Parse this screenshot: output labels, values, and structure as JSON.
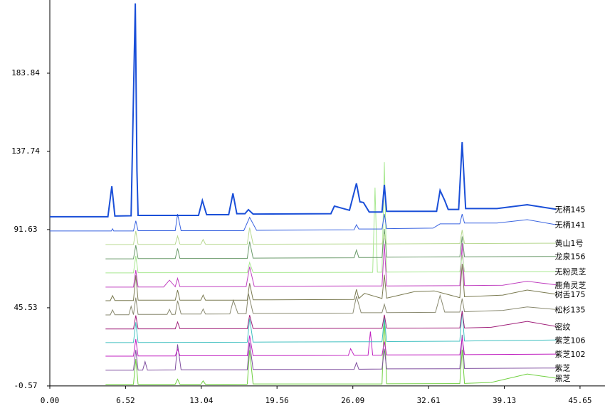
{
  "chart_data": {
    "type": "line",
    "xlim": [
      0,
      47.8
    ],
    "ylim": [
      -2.7,
      227
    ],
    "xticks": [
      {
        "value": 0,
        "label": "0.00"
      },
      6.52,
      13.04,
      19.56,
      26.09,
      32.61,
      39.13,
      45.65
    ],
    "yticks": [
      -0.57,
      45.53,
      91.63,
      137.74,
      183.84
    ],
    "series": [
      {
        "name": "无柄145",
        "color": "#1a4fd8",
        "x": [
          0,
          5.0,
          5.34,
          5.6,
          7.0,
          7.36,
          7.5,
          7.6,
          12.8,
          13.13,
          13.5,
          15.4,
          15.77,
          16.1,
          16.8,
          17.1,
          17.5,
          24.2,
          24.5,
          25.8,
          26.4,
          26.7,
          27.0,
          27.5,
          28.6,
          28.8,
          29.0,
          33.3,
          33.6,
          34.0,
          34.3,
          35.2,
          35.5,
          35.8,
          38.5,
          41.1,
          43.6
        ],
        "values": [
          99.2,
          99.2,
          117.2,
          99.6,
          99.8,
          225,
          126.4,
          100,
          100,
          108.8,
          100.4,
          100.4,
          113,
          101,
          101,
          103.4,
          100.8,
          101,
          105.5,
          103,
          118.9,
          108,
          107.6,
          102,
          102,
          118,
          102.4,
          102.4,
          114.7,
          108.8,
          103.5,
          103.5,
          143.2,
          104,
          104,
          106.3,
          103.6
        ]
      },
      {
        "name": "无柄141",
        "color": "#3a64e0",
        "x": [
          0,
          5.3,
          5.4,
          5.5,
          7.2,
          7.4,
          7.6,
          10.8,
          11.0,
          11.3,
          16.7,
          17.2,
          17.8,
          26.2,
          26.4,
          26.6,
          28.6,
          28.8,
          29.0,
          33.0,
          33.6,
          35.3,
          35.5,
          35.7,
          38.5,
          41.1,
          43.6
        ],
        "values": [
          90.8,
          90.8,
          92.1,
          90.8,
          90.8,
          96.8,
          91,
          91,
          100.8,
          91,
          91,
          98.8,
          91.2,
          91.5,
          94.5,
          92,
          92,
          100.8,
          92.2,
          92.5,
          95,
          95,
          100.8,
          95.5,
          95.5,
          97.5,
          94.5
        ]
      },
      {
        "name": "黄山1号",
        "color": "#b8d890",
        "x": [
          4.8,
          7.2,
          7.4,
          7.6,
          10.8,
          11.0,
          11.2,
          13.0,
          13.2,
          13.4,
          17.0,
          17.2,
          17.5,
          28.6,
          28.8,
          29.0,
          35.3,
          35.5,
          35.7,
          43.6
        ],
        "values": [
          82.8,
          82.8,
          90.8,
          82.9,
          82.9,
          87.8,
          83,
          83,
          85.8,
          83,
          83,
          92.8,
          83,
          83.2,
          89.2,
          83.2,
          83.4,
          91.4,
          83.4,
          83.6
        ]
      },
      {
        "name": "龙泉156",
        "color": "#6a9a6a",
        "x": [
          4.8,
          7.2,
          7.4,
          7.6,
          10.8,
          11.0,
          11.2,
          17.0,
          17.2,
          17.5,
          26.2,
          26.4,
          26.6,
          28.6,
          28.8,
          29.0,
          35.3,
          35.5,
          35.7,
          43.6
        ],
        "values": [
          74.4,
          74.4,
          82.4,
          74.5,
          74.5,
          80.5,
          74.6,
          74.6,
          84.6,
          74.8,
          75,
          79.6,
          75.2,
          75.2,
          92,
          75.4,
          75.6,
          87.6,
          75.6,
          75.8
        ]
      },
      {
        "name": "无粉灵芝",
        "color": "#a8e890",
        "x": [
          4.8,
          7.2,
          7.4,
          7.6,
          17.0,
          17.2,
          17.5,
          27.8,
          28.0,
          28.2,
          28.6,
          28.8,
          29.0,
          35.3,
          35.5,
          35.7,
          43.6
        ],
        "values": [
          66.1,
          66.1,
          76.1,
          66.2,
          66.2,
          72.2,
          66.3,
          66.4,
          116.4,
          66.5,
          66.5,
          131.4,
          66.6,
          66.7,
          76.7,
          66.7,
          66.9
        ]
      },
      {
        "name": "鹿角灵芝",
        "color": "#c040c0",
        "x": [
          4.8,
          7.2,
          7.4,
          7.6,
          9.8,
          10.3,
          10.8,
          11.0,
          11.2,
          16.9,
          17.2,
          17.6,
          28.6,
          28.8,
          29.0,
          35.3,
          35.5,
          35.7,
          39,
          41.1,
          43.6
        ],
        "values": [
          57.7,
          57.7,
          67.7,
          57.8,
          57.8,
          61.8,
          57.9,
          62.9,
          58,
          58,
          69.7,
          58.2,
          58.4,
          83.4,
          58.4,
          58.6,
          83.6,
          58.6,
          58.8,
          61.2,
          59
        ]
      },
      {
        "name": "树舌175",
        "color": "#7a7a50",
        "x": [
          4.8,
          5.2,
          5.4,
          5.6,
          7.2,
          7.4,
          7.6,
          10.8,
          11.0,
          11.2,
          13.0,
          13.2,
          13.4,
          17.0,
          17.2,
          17.5,
          26.2,
          26.4,
          26.6,
          27.1,
          28.6,
          28.8,
          29.0,
          31.4,
          33.1,
          35.3,
          35.5,
          35.7,
          39,
          41.1,
          43.6
        ],
        "values": [
          49.7,
          49.7,
          52.7,
          49.8,
          49.8,
          64.7,
          50,
          50,
          56,
          50,
          50,
          53,
          50,
          50,
          60,
          50.2,
          50.4,
          56.4,
          51,
          54,
          51,
          65,
          51.2,
          55,
          55.5,
          51.5,
          71.5,
          52,
          53,
          56,
          53.5
        ]
      },
      {
        "name": "松杉135",
        "color": "#8a8a70",
        "x": [
          4.8,
          5.2,
          5.4,
          5.6,
          6.8,
          7.0,
          7.2,
          7.4,
          7.6,
          10.1,
          10.3,
          10.5,
          10.8,
          11.0,
          11.3,
          13.0,
          13.2,
          13.4,
          15.5,
          15.8,
          16.2,
          16.9,
          17.1,
          17.5,
          26.1,
          26.4,
          26.8,
          28.6,
          28.8,
          29.0,
          33.2,
          33.6,
          34.0,
          35.3,
          35.5,
          35.7,
          39,
          41.1,
          43.6
        ],
        "values": [
          41.3,
          41.3,
          44.3,
          41.4,
          41.4,
          46.4,
          41.5,
          51.5,
          41.6,
          41.6,
          44.6,
          41.6,
          41.7,
          49.7,
          41.8,
          41.8,
          44.8,
          41.8,
          41.9,
          49.9,
          42,
          42,
          54,
          42.2,
          42.4,
          52.4,
          42.6,
          42.6,
          47.6,
          42.7,
          42.8,
          52.8,
          43,
          43,
          51,
          43.2,
          44,
          46,
          44.5
        ]
      },
      {
        "name": "密纹",
        "color": "#a0207a",
        "x": [
          4.8,
          7.2,
          7.4,
          7.6,
          10.8,
          11.0,
          11.2,
          17.0,
          17.2,
          17.5,
          28.6,
          28.8,
          29.0,
          35.3,
          35.5,
          35.7,
          38,
          41.1,
          43.6
        ],
        "values": [
          33,
          33,
          41,
          33.1,
          33.1,
          37.1,
          33.2,
          33.2,
          41.2,
          33.3,
          33.4,
          41.4,
          33.5,
          33.6,
          43.6,
          33.6,
          34,
          37.5,
          34.5
        ]
      },
      {
        "name": "紫芝106",
        "color": "#40c0c0",
        "x": [
          4.8,
          7.2,
          7.4,
          7.6,
          17.0,
          17.2,
          17.5,
          28.6,
          28.8,
          29.0,
          35.3,
          35.5,
          35.7,
          38,
          43.6
        ],
        "values": [
          25,
          25,
          37,
          25.1,
          25.2,
          39.2,
          25.3,
          25.5,
          39.5,
          25.6,
          25.8,
          43.8,
          25.9,
          26.2,
          26.5
        ]
      },
      {
        "name": "紫芝102",
        "color": "#c020c0",
        "x": [
          4.8,
          7.2,
          7.4,
          7.6,
          10.8,
          11.0,
          11.2,
          17.0,
          17.2,
          17.5,
          25.7,
          25.9,
          26.2,
          27.4,
          27.6,
          27.8,
          28.6,
          28.8,
          29.0,
          35.3,
          35.5,
          35.7,
          43.6
        ],
        "values": [
          17,
          17,
          27,
          17.1,
          17.1,
          21.1,
          17.2,
          17.2,
          29.2,
          17.3,
          17.4,
          21.4,
          17.5,
          17.5,
          31.5,
          17.6,
          17.6,
          25.6,
          17.7,
          17.8,
          27.8,
          17.9,
          18.2
        ]
      },
      {
        "name": "紫芝",
        "color": "#8050a0",
        "x": [
          4.8,
          7.2,
          7.4,
          7.6,
          8.0,
          8.2,
          8.4,
          10.8,
          11.0,
          11.3,
          17.0,
          17.2,
          17.5,
          26.2,
          26.4,
          26.6,
          28.6,
          28.8,
          29.0,
          35.3,
          35.5,
          35.7,
          43.6
        ],
        "values": [
          8.7,
          8.7,
          20.7,
          8.8,
          8.8,
          13.8,
          8.8,
          8.9,
          23.9,
          9,
          9,
          25,
          9.1,
          9.2,
          13.2,
          9.3,
          9.4,
          21.4,
          9.5,
          9.6,
          29.6,
          9.7,
          10
        ]
      },
      {
        "name": "黑芝",
        "color": "#70d040",
        "x": [
          4.8,
          7.2,
          7.4,
          7.6,
          10.8,
          11.0,
          11.2,
          13.0,
          13.2,
          13.4,
          17.0,
          17.2,
          17.5,
          28.6,
          28.8,
          29.0,
          35.3,
          35.5,
          35.7,
          38,
          41.1,
          43.6
        ],
        "values": [
          0.3,
          0.3,
          15.3,
          0.4,
          0.4,
          3.4,
          0.4,
          0.4,
          2.4,
          0.4,
          0.5,
          20.5,
          0.6,
          0.6,
          40.6,
          0.7,
          0.8,
          20.8,
          0.9,
          1.5,
          6.5,
          4
        ]
      }
    ]
  }
}
